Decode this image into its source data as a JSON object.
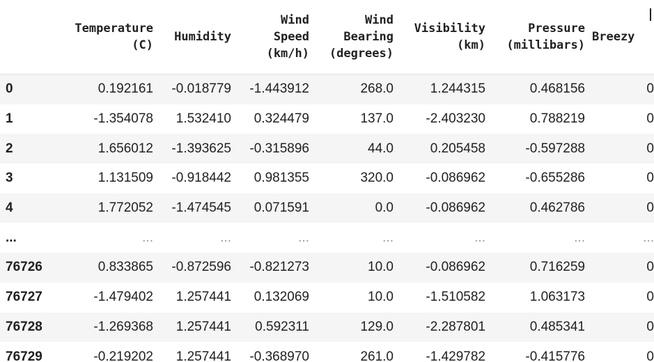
{
  "table": {
    "columns": [
      {
        "key": "idx",
        "label_lines": []
      },
      {
        "key": "temperature",
        "label_lines": [
          "Temperature",
          "(C)"
        ]
      },
      {
        "key": "humidity",
        "label_lines": [
          "Humidity"
        ]
      },
      {
        "key": "wind_speed",
        "label_lines": [
          "Wind",
          "Speed",
          "(km/h)"
        ]
      },
      {
        "key": "wind_bearing",
        "label_lines": [
          "Wind",
          "Bearing",
          "(degrees)"
        ]
      },
      {
        "key": "visibility",
        "label_lines": [
          "Visibility",
          "(km)"
        ]
      },
      {
        "key": "pressure",
        "label_lines": [
          "Pressure",
          "(millibars)"
        ]
      },
      {
        "key": "breezy",
        "label_lines": [
          "Breezy"
        ]
      }
    ],
    "rows": [
      {
        "idx": "0",
        "cells": [
          "0.192161",
          "-0.018779",
          "-1.443912",
          "268.0",
          "1.244315",
          "0.468156",
          "0"
        ]
      },
      {
        "idx": "1",
        "cells": [
          "-1.354078",
          "1.532410",
          "0.324479",
          "137.0",
          "-2.403230",
          "0.788219",
          "0"
        ]
      },
      {
        "idx": "2",
        "cells": [
          "1.656012",
          "-1.393625",
          "-0.315896",
          "44.0",
          "0.205458",
          "-0.597288",
          "0"
        ]
      },
      {
        "idx": "3",
        "cells": [
          "1.131509",
          "-0.918442",
          "0.981355",
          "320.0",
          "-0.086962",
          "-0.655286",
          "0"
        ]
      },
      {
        "idx": "4",
        "cells": [
          "1.772052",
          "-1.474545",
          "0.071591",
          "0.0",
          "-0.086962",
          "0.462786",
          "0"
        ]
      },
      {
        "idx": "...",
        "cells": [
          "...",
          "...",
          "...",
          "...",
          "...",
          "...",
          "..."
        ],
        "ellipsis": true
      },
      {
        "idx": "76726",
        "cells": [
          "0.833865",
          "-0.872596",
          "-0.821273",
          "10.0",
          "-0.086962",
          "0.716259",
          "0"
        ]
      },
      {
        "idx": "76727",
        "cells": [
          "-1.479402",
          "1.257441",
          "0.132069",
          "10.0",
          "-1.510582",
          "1.063173",
          "0"
        ]
      },
      {
        "idx": "76728",
        "cells": [
          "-1.269368",
          "1.257441",
          "0.592311",
          "129.0",
          "-2.287801",
          "0.485341",
          "0"
        ]
      },
      {
        "idx": "76729",
        "cells": [
          "-0.219202",
          "1.257441",
          "-0.368970",
          "261.0",
          "-1.429782",
          "-0.415776",
          "0"
        ]
      }
    ]
  }
}
